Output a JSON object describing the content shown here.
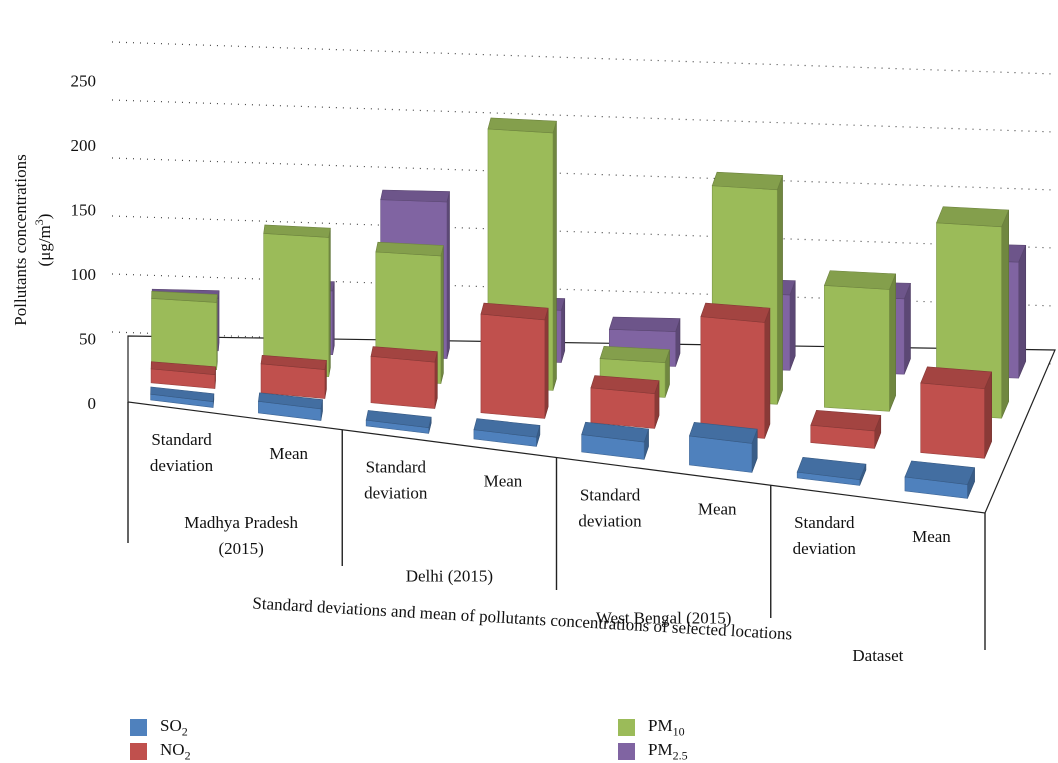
{
  "chart_data": {
    "type": "bar",
    "y_axis": {
      "label_line1": "Pollutants concentrations",
      "label_line2_prefix": "(μg/m",
      "label_line2_sup": "3",
      "label_line2_suffix": ")",
      "ticks": [
        "0",
        "50",
        "100",
        "150",
        "200",
        "250"
      ],
      "range": [
        0,
        250
      ]
    },
    "x_axis_title": "Standard deviations and mean of pollutants concentrations of selected locations",
    "groups": [
      {
        "label_lines": [
          "Madhya Pradesh",
          "(2015)"
        ],
        "categories": [
          [
            "Standard",
            "deviation"
          ],
          [
            "Mean"
          ]
        ]
      },
      {
        "label_lines": [
          "Delhi (2015)"
        ],
        "categories": [
          [
            "Standard",
            "deviation"
          ],
          [
            "Mean"
          ]
        ]
      },
      {
        "label_lines": [
          "West Bengal (2015)"
        ],
        "categories": [
          [
            "Standard",
            "deviation"
          ],
          [
            "Mean"
          ]
        ]
      },
      {
        "label_lines": [
          "Dataset"
        ],
        "categories": [
          [
            "Standard",
            "deviation"
          ],
          [
            "Mean"
          ]
        ]
      }
    ],
    "series": [
      {
        "base": "SO",
        "sub": "2",
        "color": "#4f81bd",
        "values": [
          5,
          10,
          5,
          8,
          15,
          25,
          5,
          12
        ]
      },
      {
        "base": "NO",
        "sub": "2",
        "color": "#c0504d",
        "values": [
          12,
          25,
          40,
          85,
          30,
          100,
          15,
          60
        ]
      },
      {
        "base": "PM",
        "sub": "10",
        "color": "#9bbb59",
        "values": [
          58,
          120,
          110,
          222,
          30,
          185,
          105,
          165
        ]
      },
      {
        "base": "PM",
        "sub": "2.5",
        "color": "#8064a2",
        "values": [
          45,
          55,
          135,
          45,
          30,
          65,
          65,
          100
        ]
      }
    ],
    "grid": true,
    "legend_position": "bottom"
  }
}
